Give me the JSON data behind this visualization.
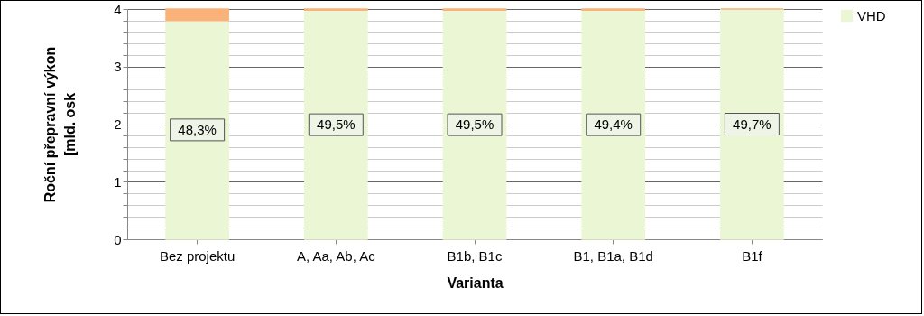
{
  "chart_data": {
    "type": "bar",
    "stacked": true,
    "xlabel": "Varianta",
    "ylabel": "Roční přepravní výkon\n[mld. osk",
    "categories": [
      "Bez projektu",
      "A, Aa, Ab, Ac",
      "B1b, B1c",
      "B1, B1a, B1d",
      "B1f"
    ],
    "series": [
      {
        "name": "VHD",
        "color": "#ebf7d4",
        "values": [
          3.8,
          3.98,
          3.98,
          3.98,
          4.0
        ]
      },
      {
        "color": "#f9b27a",
        "values": [
          0.2,
          0.02,
          0.02,
          0.02,
          0
        ]
      }
    ],
    "ylim": [
      0,
      4
    ],
    "yticks": [
      0,
      {
        "value": 0.2,
        "label": null
      },
      {
        "value": 0.4,
        "label": null
      },
      {
        "value": 0.6,
        "label": null
      },
      {
        "value": 0.8,
        "label": null
      },
      1,
      {
        "value": 1.2,
        "label": null
      },
      {
        "value": 1.4,
        "label": null
      },
      {
        "value": 1.6,
        "label": null
      },
      {
        "value": 1.8,
        "label": null
      },
      2,
      {
        "value": 2.2,
        "label": null
      },
      {
        "value": 2.4,
        "label": null
      },
      {
        "value": 2.6,
        "label": null
      },
      {
        "value": 2.8,
        "label": null
      },
      3,
      {
        "value": 3.2,
        "label": null
      },
      {
        "value": 3.4,
        "label": null
      },
      {
        "value": 3.6,
        "label": null
      },
      {
        "value": 3.8,
        "label": null
      },
      4
    ],
    "annotations": [
      "48,3%",
      "49,5%",
      "49,5%",
      "49,4%",
      "49,7%"
    ],
    "grid": "y",
    "legend": "top right"
  }
}
